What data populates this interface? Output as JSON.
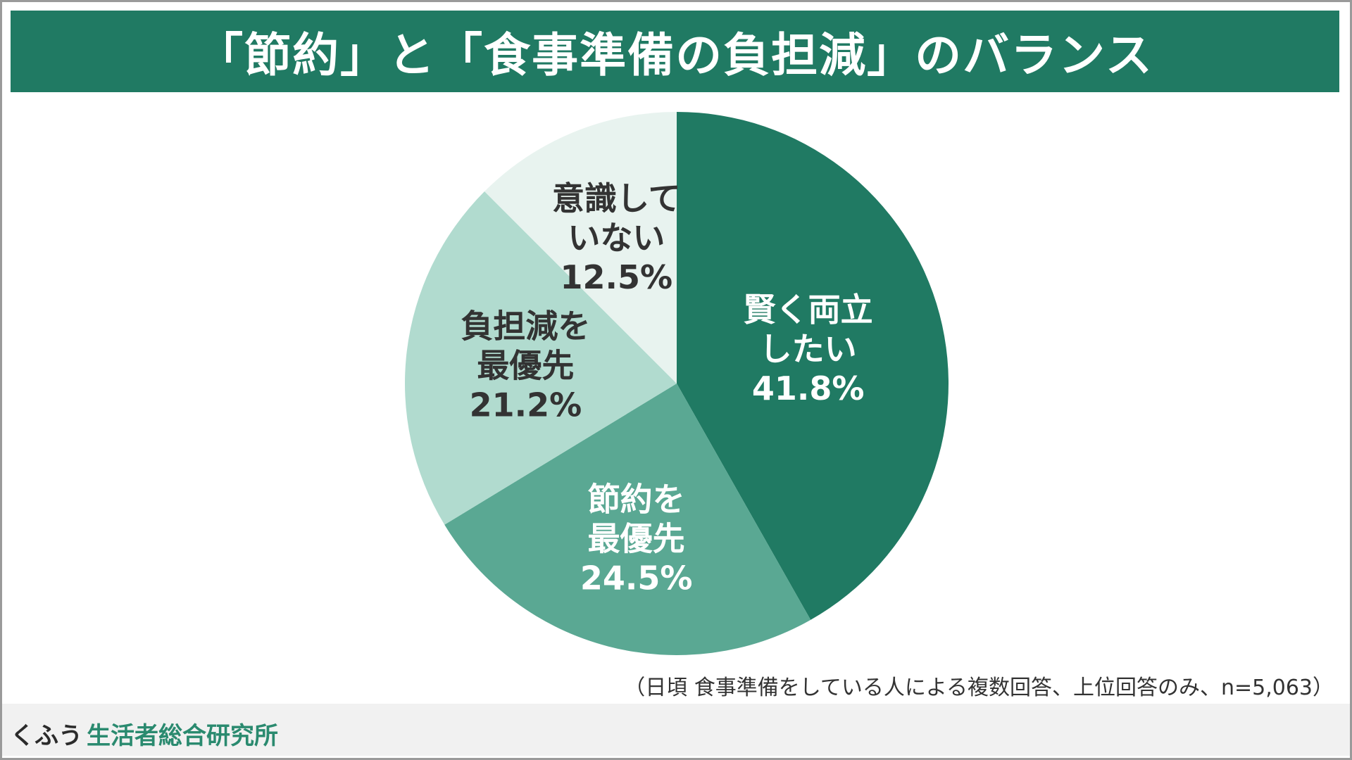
{
  "title": "「節約」と「食事準備の負担減」のバランス",
  "note": "（日頃 食事準備をしている人による複数回答、上位回答のみ、n=5,063）",
  "footer": {
    "logo_part1": "くふう",
    "logo_part2": "生活者総合研究所"
  },
  "colors": {
    "title_bar": "#207a63",
    "slice_dark": "#207a63",
    "slice_medium": "#5aa893",
    "slice_light": "#b1dbcf",
    "slice_lightest": "#e8f3ef"
  },
  "chart_data": {
    "type": "pie",
    "start": "top",
    "direction": "clockwise",
    "slices": [
      {
        "label_lines": [
          "賢く両立",
          "したい"
        ],
        "value_label": "41.8%",
        "value": 41.8,
        "color": "#207a63",
        "text_color": "#ffffff"
      },
      {
        "label_lines": [
          "節約を",
          "最優先"
        ],
        "value_label": "24.5%",
        "value": 24.5,
        "color": "#5aa893",
        "text_color": "#ffffff"
      },
      {
        "label_lines": [
          "負担減を",
          "最優先"
        ],
        "value_label": "21.2%",
        "value": 21.2,
        "color": "#b1dbcf",
        "text_color": "#333333"
      },
      {
        "label_lines": [
          "意識して",
          "いない"
        ],
        "value_label": "12.5%",
        "value": 12.5,
        "color": "#e8f3ef",
        "text_color": "#333333"
      }
    ]
  }
}
